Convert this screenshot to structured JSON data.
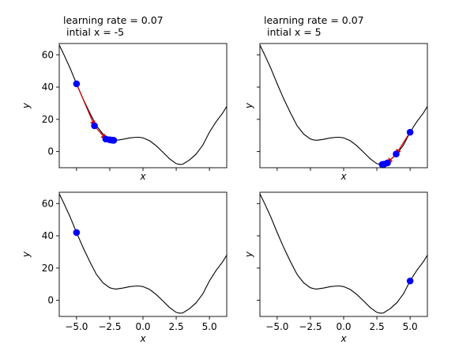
{
  "chart_data": [
    {
      "type": "line",
      "title": "learning rate = 0.07\n intial x = -5",
      "xlabel": "x",
      "ylabel": "y",
      "xlim": [
        -6.3,
        6.3
      ],
      "ylim": [
        -10,
        67
      ],
      "xticks": [
        -5.0,
        -2.5,
        0.0,
        2.5,
        5.0
      ],
      "xtick_labels": [
        "−5.0",
        "−2.5",
        "0.0",
        "2.5",
        "5.0"
      ],
      "show_xtick_labels": false,
      "yticks": [
        0,
        20,
        40,
        60
      ],
      "ytick_labels": [
        "0",
        "20",
        "40",
        "60"
      ],
      "show_ytick_labels": true,
      "curve": {
        "x": [
          -6.3,
          -6.0,
          -5.5,
          -5.0,
          -4.5,
          -4.0,
          -3.5,
          -3.0,
          -2.5,
          -2.2,
          -2.0,
          -1.5,
          -1.0,
          -0.5,
          -0.3,
          0.0,
          0.5,
          1.0,
          1.5,
          2.0,
          2.5,
          2.8,
          3.0,
          3.5,
          4.0,
          4.5,
          5.0,
          5.5,
          6.0,
          6.3
        ],
        "y": [
          66.0,
          61.0,
          52.0,
          42.0,
          32.5,
          24.0,
          16.0,
          10.8,
          7.8,
          7.1,
          7.0,
          7.6,
          8.5,
          8.9,
          8.9,
          8.5,
          6.7,
          3.6,
          -0.4,
          -4.5,
          -7.5,
          -8.0,
          -7.8,
          -5.2,
          -1.5,
          4.0,
          12.0,
          18.5,
          24.0,
          28.0
        ]
      },
      "points": {
        "x": [
          -5.0,
          -3.65,
          -2.8,
          -2.5,
          -2.35,
          -2.25,
          -2.2
        ],
        "y": [
          42.0,
          16.0,
          7.8,
          7.3,
          7.1,
          7.0,
          7.0
        ]
      },
      "arrows": true,
      "colors": {
        "curve": "#000000",
        "points": "#0000ff",
        "arrows": "#d40000"
      }
    },
    {
      "type": "line",
      "title": "learning rate = 0.07\n intial x = 5",
      "xlabel": "x",
      "ylabel": "y",
      "xlim": [
        -6.3,
        6.3
      ],
      "ylim": [
        -10,
        67
      ],
      "xticks": [
        -5.0,
        -2.5,
        0.0,
        2.5,
        5.0
      ],
      "xtick_labels": [
        "−5.0",
        "−2.5",
        "0.0",
        "2.5",
        "5.0"
      ],
      "show_xtick_labels": false,
      "yticks": [
        0,
        20,
        40,
        60
      ],
      "ytick_labels": [
        "0",
        "20",
        "40",
        "60"
      ],
      "show_ytick_labels": false,
      "curve": {
        "x": [
          -6.3,
          -6.0,
          -5.5,
          -5.0,
          -4.5,
          -4.0,
          -3.5,
          -3.0,
          -2.5,
          -2.2,
          -2.0,
          -1.5,
          -1.0,
          -0.5,
          -0.3,
          0.0,
          0.5,
          1.0,
          1.5,
          2.0,
          2.5,
          2.8,
          3.0,
          3.5,
          4.0,
          4.5,
          5.0,
          5.5,
          6.0,
          6.3
        ],
        "y": [
          66.0,
          61.0,
          52.0,
          42.0,
          32.5,
          24.0,
          16.0,
          10.8,
          7.8,
          7.1,
          7.0,
          7.6,
          8.5,
          8.9,
          8.9,
          8.5,
          6.7,
          3.6,
          -0.4,
          -4.5,
          -7.5,
          -8.0,
          -7.8,
          -5.2,
          -1.5,
          4.0,
          12.0,
          18.5,
          24.0,
          28.0
        ]
      },
      "points": {
        "x": [
          5.0,
          3.95,
          3.3,
          3.05,
          2.95,
          2.9
        ],
        "y": [
          12.0,
          -1.5,
          -7.0,
          -7.8,
          -8.0,
          -8.0
        ]
      },
      "arrows": true,
      "colors": {
        "curve": "#000000",
        "points": "#0000ff",
        "arrows": "#d40000"
      }
    },
    {
      "type": "line",
      "title": "",
      "xlabel": "x",
      "ylabel": "y",
      "xlim": [
        -6.3,
        6.3
      ],
      "ylim": [
        -10,
        67
      ],
      "xticks": [
        -5.0,
        -2.5,
        0.0,
        2.5,
        5.0
      ],
      "xtick_labels": [
        "−5.0",
        "−2.5",
        "0.0",
        "2.5",
        "5.0"
      ],
      "show_xtick_labels": true,
      "yticks": [
        0,
        20,
        40,
        60
      ],
      "ytick_labels": [
        "0",
        "20",
        "40",
        "60"
      ],
      "show_ytick_labels": true,
      "curve": {
        "x": [
          -6.3,
          -6.0,
          -5.5,
          -5.0,
          -4.5,
          -4.0,
          -3.5,
          -3.0,
          -2.5,
          -2.2,
          -2.0,
          -1.5,
          -1.0,
          -0.5,
          -0.3,
          0.0,
          0.5,
          1.0,
          1.5,
          2.0,
          2.5,
          2.8,
          3.0,
          3.5,
          4.0,
          4.5,
          5.0,
          5.5,
          6.0,
          6.3
        ],
        "y": [
          66.0,
          61.0,
          52.0,
          42.0,
          32.5,
          24.0,
          16.0,
          10.8,
          7.8,
          7.1,
          7.0,
          7.6,
          8.5,
          8.9,
          8.9,
          8.5,
          6.7,
          3.6,
          -0.4,
          -4.5,
          -7.5,
          -8.0,
          -7.8,
          -5.2,
          -1.5,
          4.0,
          12.0,
          18.5,
          24.0,
          28.0
        ]
      },
      "points": {
        "x": [
          -5.0
        ],
        "y": [
          42.0
        ]
      },
      "arrows": false,
      "colors": {
        "curve": "#000000",
        "points": "#0000ff",
        "arrows": "#d40000"
      }
    },
    {
      "type": "line",
      "title": "",
      "xlabel": "x",
      "ylabel": "y",
      "xlim": [
        -6.3,
        6.3
      ],
      "ylim": [
        -10,
        67
      ],
      "xticks": [
        -5.0,
        -2.5,
        0.0,
        2.5,
        5.0
      ],
      "xtick_labels": [
        "−5.0",
        "−2.5",
        "0.0",
        "2.5",
        "5.0"
      ],
      "show_xtick_labels": true,
      "yticks": [
        0,
        20,
        40,
        60
      ],
      "ytick_labels": [
        "0",
        "20",
        "40",
        "60"
      ],
      "show_ytick_labels": false,
      "curve": {
        "x": [
          -6.3,
          -6.0,
          -5.5,
          -5.0,
          -4.5,
          -4.0,
          -3.5,
          -3.0,
          -2.5,
          -2.2,
          -2.0,
          -1.5,
          -1.0,
          -0.5,
          -0.3,
          0.0,
          0.5,
          1.0,
          1.5,
          2.0,
          2.5,
          2.8,
          3.0,
          3.5,
          4.0,
          4.5,
          5.0,
          5.5,
          6.0,
          6.3
        ],
        "y": [
          66.0,
          61.0,
          52.0,
          42.0,
          32.5,
          24.0,
          16.0,
          10.8,
          7.8,
          7.1,
          7.0,
          7.6,
          8.5,
          8.9,
          8.9,
          8.5,
          6.7,
          3.6,
          -0.4,
          -4.5,
          -7.5,
          -8.0,
          -7.8,
          -5.2,
          -1.5,
          4.0,
          12.0,
          18.5,
          24.0,
          28.0
        ]
      },
      "points": {
        "x": [
          5.0
        ],
        "y": [
          12.0
        ]
      },
      "arrows": false,
      "colors": {
        "curve": "#000000",
        "points": "#0000ff",
        "arrows": "#d40000"
      }
    }
  ]
}
